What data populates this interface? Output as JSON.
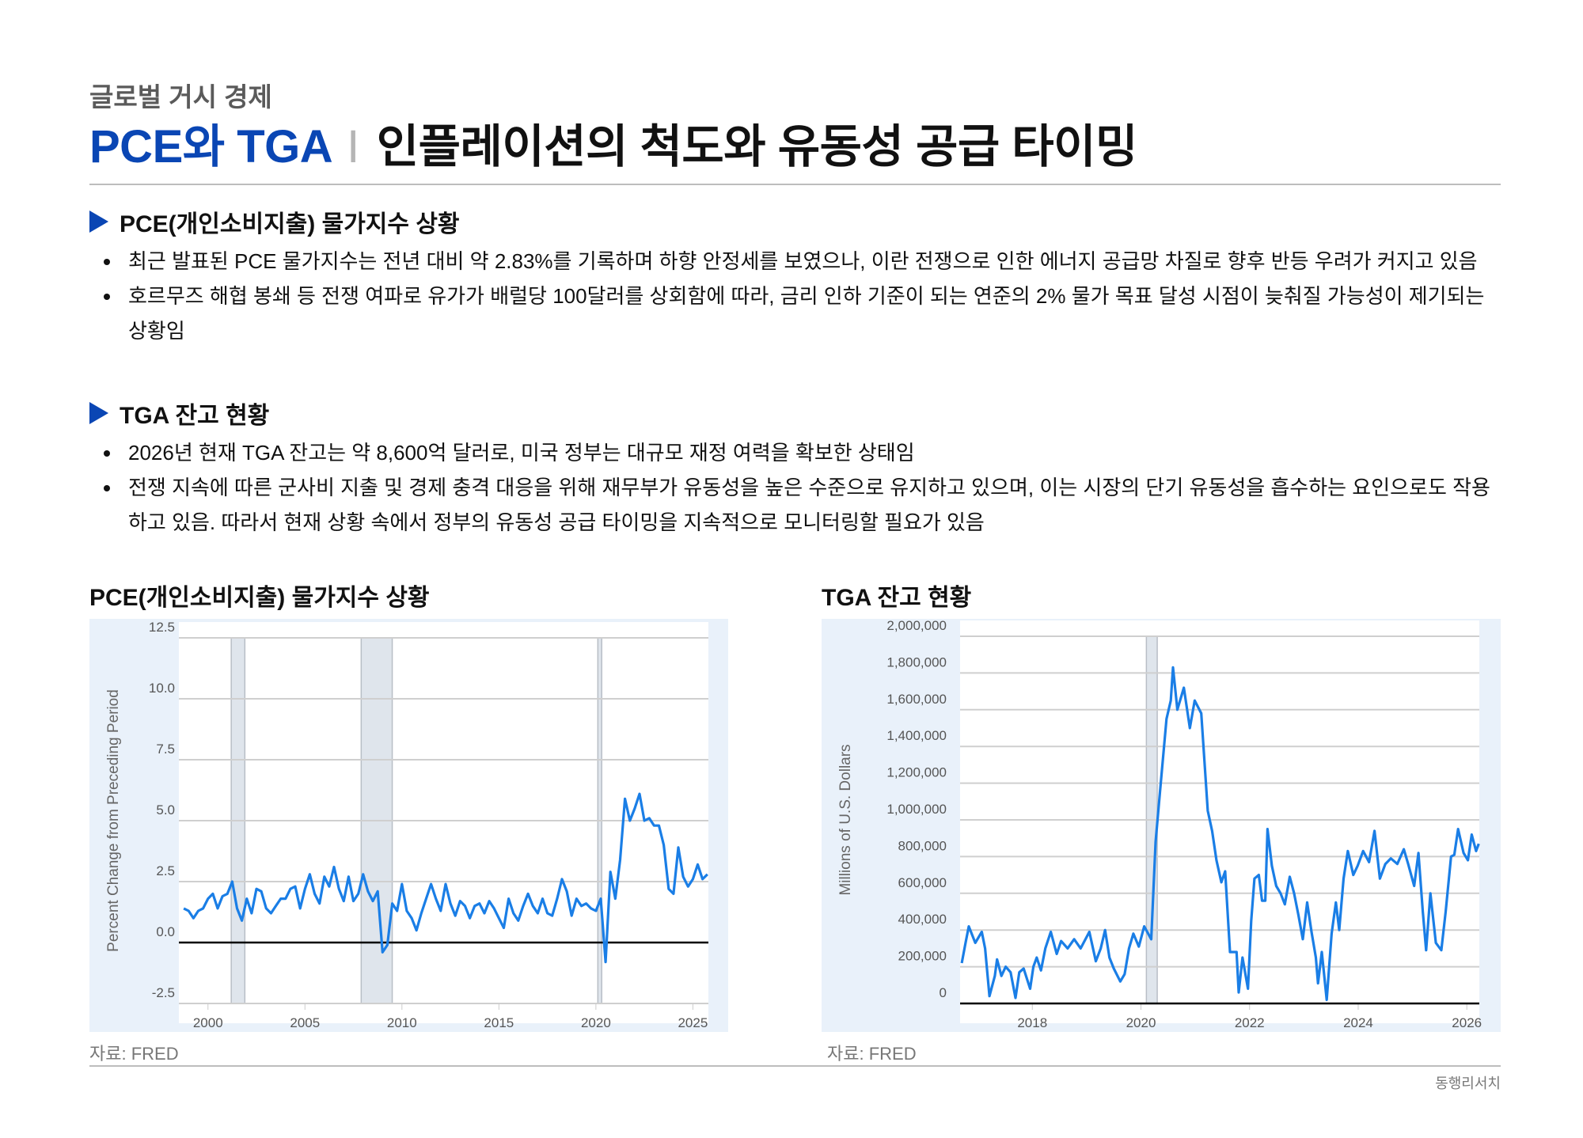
{
  "header": {
    "kicker": "글로벌 거시 경제",
    "title_highlight": "PCE와 TGA",
    "title_separator": "I",
    "title_main": "인플레이션의 척도와 유동성 공급 타이밍"
  },
  "sections": [
    {
      "heading": "PCE(개인소비지출) 물가지수 상황",
      "bullets": [
        "최근 발표된 PCE 물가지수는 전년 대비 약 2.83%를 기록하며 하향 안정세를 보였으나, 이란 전쟁으로 인한 에너지 공급망 차질로 향후 반등 우려가 커지고 있음",
        "호르무즈 해협 봉쇄 등 전쟁 여파로 유가가 배럴당 100달러를 상회함에 따라, 금리 인하 기준이 되는 연준의 2% 물가 목표 달성 시점이 늦춰질 가능성이 제기되는 상황임"
      ]
    },
    {
      "heading": "TGA 잔고 현황",
      "bullets": [
        "2026년 현재 TGA 잔고는 약 8,600억 달러로, 미국 정부는 대규모 재정 여력을 확보한 상태임",
        "전쟁 지속에 따른 군사비 지출 및 경제 충격 대응을 위해 재무부가 유동성을 높은 수준으로 유지하고 있으며, 이는 시장의 단기 유동성을 흡수하는 요인으로도 작용하고 있음. 따라서 현재 상황 속에서 정부의 유동성 공급 타이밍을 지속적으로 모니터링할 필요가 있음"
      ]
    }
  ],
  "charts": [
    {
      "title": "PCE(개인소비지출) 물가지수 상황",
      "source": "자료: FRED"
    },
    {
      "title": "TGA 잔고 현황",
      "source": "자료: FRED"
    }
  ],
  "footer": {
    "brand": "동행리서치"
  },
  "colors": {
    "accent": "#0a46b4",
    "line": "#1a7ee6",
    "panel": "#e9f1fa",
    "recession": "#dfe5ec"
  },
  "chart_data": [
    {
      "type": "line",
      "title": "",
      "xlabel": "",
      "ylabel": "Percent Change from Preceding Period",
      "xlim": [
        1998.5,
        2025.8
      ],
      "ylim": [
        -2.5,
        12.5
      ],
      "yticks": [
        "12.5",
        "10.0",
        "7.5",
        "5.0",
        "2.5",
        "0.0",
        "-2.5"
      ],
      "xticks": [
        "2000",
        "2005",
        "2010",
        "2015",
        "2020",
        "2025"
      ],
      "grid": true,
      "recessions": [
        [
          2001.2,
          2001.9
        ],
        [
          2007.9,
          2009.5
        ],
        [
          2020.1,
          2020.3
        ]
      ],
      "x": [
        1998.75,
        1999,
        1999.25,
        1999.5,
        1999.75,
        2000,
        2000.25,
        2000.5,
        2000.75,
        2001,
        2001.25,
        2001.5,
        2001.75,
        2002,
        2002.25,
        2002.5,
        2002.75,
        2003,
        2003.25,
        2003.5,
        2003.75,
        2004,
        2004.25,
        2004.5,
        2004.75,
        2005,
        2005.25,
        2005.5,
        2005.75,
        2006,
        2006.25,
        2006.5,
        2006.75,
        2007,
        2007.25,
        2007.5,
        2007.75,
        2008,
        2008.25,
        2008.5,
        2008.75,
        2009,
        2009.25,
        2009.5,
        2009.75,
        2010,
        2010.25,
        2010.5,
        2010.75,
        2011,
        2011.25,
        2011.5,
        2011.75,
        2012,
        2012.25,
        2012.5,
        2012.75,
        2013,
        2013.25,
        2013.5,
        2013.75,
        2014,
        2014.25,
        2014.5,
        2014.75,
        2015,
        2015.25,
        2015.5,
        2015.75,
        2016,
        2016.25,
        2016.5,
        2016.75,
        2017,
        2017.25,
        2017.5,
        2017.75,
        2018,
        2018.25,
        2018.5,
        2018.75,
        2019,
        2019.25,
        2019.5,
        2019.75,
        2020,
        2020.25,
        2020.5,
        2020.75,
        2021,
        2021.25,
        2021.5,
        2021.75,
        2022,
        2022.25,
        2022.5,
        2022.75,
        2023,
        2023.25,
        2023.5,
        2023.75,
        2024,
        2024.25,
        2024.5,
        2024.75,
        2025,
        2025.25,
        2025.5,
        2025.75
      ],
      "y": [
        1.4,
        1.3,
        1.0,
        1.3,
        1.4,
        1.8,
        2.0,
        1.4,
        1.9,
        2.0,
        2.5,
        1.4,
        0.9,
        1.8,
        1.2,
        2.2,
        2.1,
        1.4,
        1.2,
        1.5,
        1.8,
        1.8,
        2.2,
        2.3,
        1.4,
        2.2,
        2.8,
        2.0,
        1.6,
        2.7,
        2.3,
        3.1,
        2.2,
        1.7,
        2.7,
        1.7,
        2.0,
        2.8,
        2.1,
        1.7,
        2.1,
        -0.4,
        -0.1,
        1.6,
        1.3,
        2.4,
        1.3,
        1.0,
        0.5,
        1.2,
        1.8,
        2.4,
        1.8,
        1.3,
        2.4,
        1.6,
        1.1,
        1.7,
        1.5,
        1.0,
        1.5,
        1.6,
        1.2,
        1.7,
        1.4,
        1.0,
        0.6,
        1.8,
        1.2,
        0.9,
        1.5,
        2.0,
        1.5,
        1.2,
        1.8,
        1.2,
        1.1,
        1.8,
        2.6,
        2.1,
        1.1,
        1.8,
        1.5,
        1.6,
        1.4,
        1.3,
        1.8,
        -0.8,
        2.9,
        1.8,
        3.4,
        5.9,
        5.0,
        5.5,
        6.1,
        5.0,
        5.1,
        4.8,
        4.8,
        4.0,
        2.2,
        2.0,
        3.9,
        2.7,
        2.3,
        2.6,
        3.2,
        2.6,
        2.8
      ]
    },
    {
      "type": "line",
      "title": "",
      "xlabel": "",
      "ylabel": "Millions of U.S. Dollars",
      "xlim": [
        2016.67,
        2026.23
      ],
      "ylim": [
        0,
        2000000
      ],
      "yticks": [
        "2,000,000",
        "1,800,000",
        "1,600,000",
        "1,400,000",
        "1,200,000",
        "1,000,000",
        "800,000",
        "600,000",
        "400,000",
        "200,000",
        "0"
      ],
      "xticks": [
        "2018",
        "2020",
        "2022",
        "2024",
        "2026"
      ],
      "grid": true,
      "recessions": [
        [
          2020.1,
          2020.3
        ]
      ],
      "x": [
        2016.7,
        2016.77,
        2016.83,
        2016.95,
        2017.07,
        2017.13,
        2017.21,
        2017.31,
        2017.35,
        2017.43,
        2017.51,
        2017.6,
        2017.69,
        2017.76,
        2017.84,
        2017.96,
        2018.02,
        2018.08,
        2018.16,
        2018.24,
        2018.34,
        2018.45,
        2018.53,
        2018.65,
        2018.77,
        2018.89,
        2019.05,
        2019.17,
        2019.26,
        2019.34,
        2019.42,
        2019.5,
        2019.62,
        2019.7,
        2019.78,
        2019.86,
        2019.96,
        2020.06,
        2020.19,
        2020.27,
        2020.35,
        2020.47,
        2020.55,
        2020.59,
        2020.67,
        2020.79,
        2020.9,
        2020.99,
        2021.11,
        2021.23,
        2021.31,
        2021.39,
        2021.48,
        2021.55,
        2021.64,
        2021.76,
        2021.8,
        2021.87,
        2021.97,
        2022.03,
        2022.09,
        2022.17,
        2022.23,
        2022.29,
        2022.33,
        2022.41,
        2022.49,
        2022.57,
        2022.65,
        2022.74,
        2022.82,
        2022.9,
        2022.98,
        2023.06,
        2023.14,
        2023.22,
        2023.26,
        2023.33,
        2023.42,
        2023.51,
        2023.59,
        2023.65,
        2023.73,
        2023.81,
        2023.91,
        2023.99,
        2024.09,
        2024.2,
        2024.3,
        2024.4,
        2024.5,
        2024.6,
        2024.72,
        2024.84,
        2024.92,
        2025.03,
        2025.11,
        2025.19,
        2025.25,
        2025.33,
        2025.43,
        2025.53,
        2025.61,
        2025.71,
        2025.77,
        2025.84,
        2025.94,
        2026.02,
        2026.09,
        2026.17,
        2026.22
      ],
      "y": [
        220000,
        330000,
        420000,
        330000,
        390000,
        300000,
        40000,
        150000,
        240000,
        150000,
        200000,
        170000,
        30000,
        170000,
        190000,
        80000,
        200000,
        250000,
        180000,
        300000,
        390000,
        270000,
        340000,
        300000,
        350000,
        300000,
        390000,
        230000,
        300000,
        400000,
        250000,
        190000,
        120000,
        160000,
        300000,
        380000,
        310000,
        420000,
        350000,
        880000,
        1150000,
        1550000,
        1650000,
        1830000,
        1600000,
        1720000,
        1500000,
        1650000,
        1580000,
        1050000,
        940000,
        780000,
        660000,
        720000,
        280000,
        280000,
        60000,
        250000,
        80000,
        450000,
        680000,
        700000,
        560000,
        560000,
        950000,
        750000,
        640000,
        600000,
        540000,
        690000,
        600000,
        480000,
        350000,
        550000,
        390000,
        250000,
        110000,
        280000,
        20000,
        380000,
        550000,
        400000,
        680000,
        830000,
        700000,
        750000,
        830000,
        770000,
        940000,
        680000,
        760000,
        790000,
        760000,
        840000,
        760000,
        640000,
        820000,
        500000,
        290000,
        600000,
        330000,
        290000,
        500000,
        800000,
        810000,
        950000,
        820000,
        780000,
        920000,
        830000,
        870000
      ]
    }
  ]
}
